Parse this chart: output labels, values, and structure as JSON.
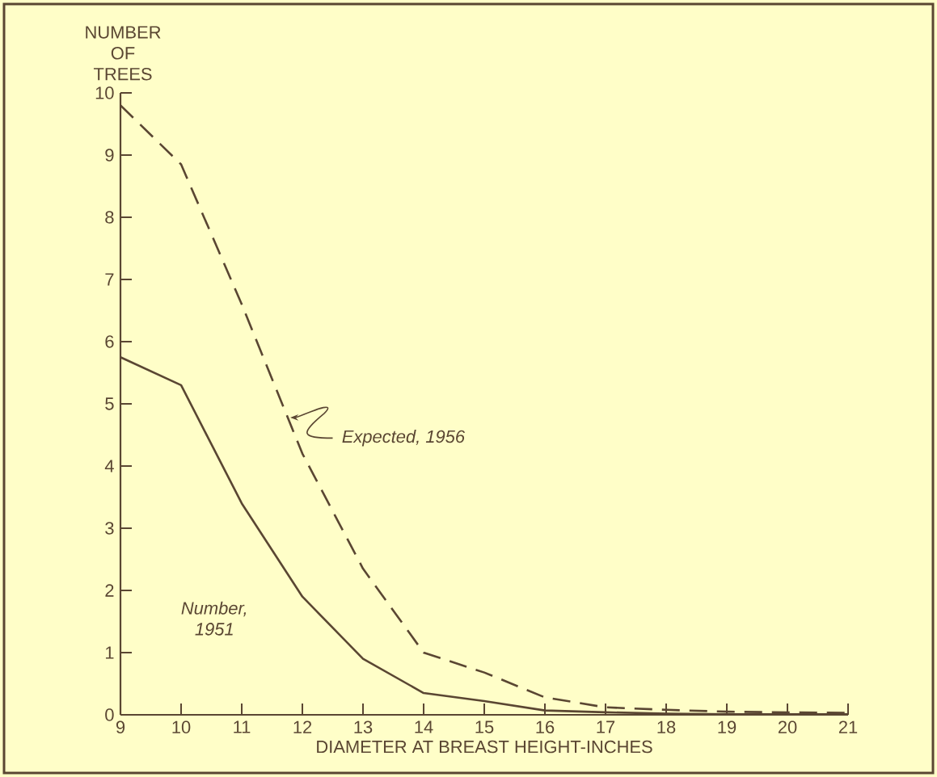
{
  "chart_data": {
    "type": "line",
    "xlabel": "DIAMETER AT BREAST HEIGHT-INCHES",
    "ylabel": "NUMBER OF TREES",
    "x": [
      9,
      10,
      11,
      12,
      13,
      14,
      15,
      16,
      17,
      18,
      19,
      20,
      21
    ],
    "series": [
      {
        "name": "Number, 1951",
        "color": "#5a4632",
        "line_style": "solid",
        "values": [
          5.75,
          5.3,
          3.4,
          1.9,
          0.9,
          0.35,
          0.22,
          0.07,
          0.04,
          0.02,
          0.01,
          0.01,
          0.01
        ]
      },
      {
        "name": "Expected, 1956",
        "color": "#5a4632",
        "line_style": "dashed",
        "values": [
          9.8,
          8.85,
          6.6,
          4.2,
          2.35,
          1.0,
          0.68,
          0.28,
          0.12,
          0.08,
          0.05,
          0.04,
          0.03
        ]
      }
    ],
    "xlim": [
      9,
      21
    ],
    "ylim": [
      0,
      10
    ],
    "xticks": [
      9,
      10,
      11,
      12,
      13,
      14,
      15,
      16,
      17,
      18,
      19,
      20,
      21
    ],
    "yticks": [
      0,
      1,
      2,
      3,
      4,
      5,
      6,
      7,
      8,
      9,
      10
    ],
    "grid": false,
    "marker": "none"
  }
}
